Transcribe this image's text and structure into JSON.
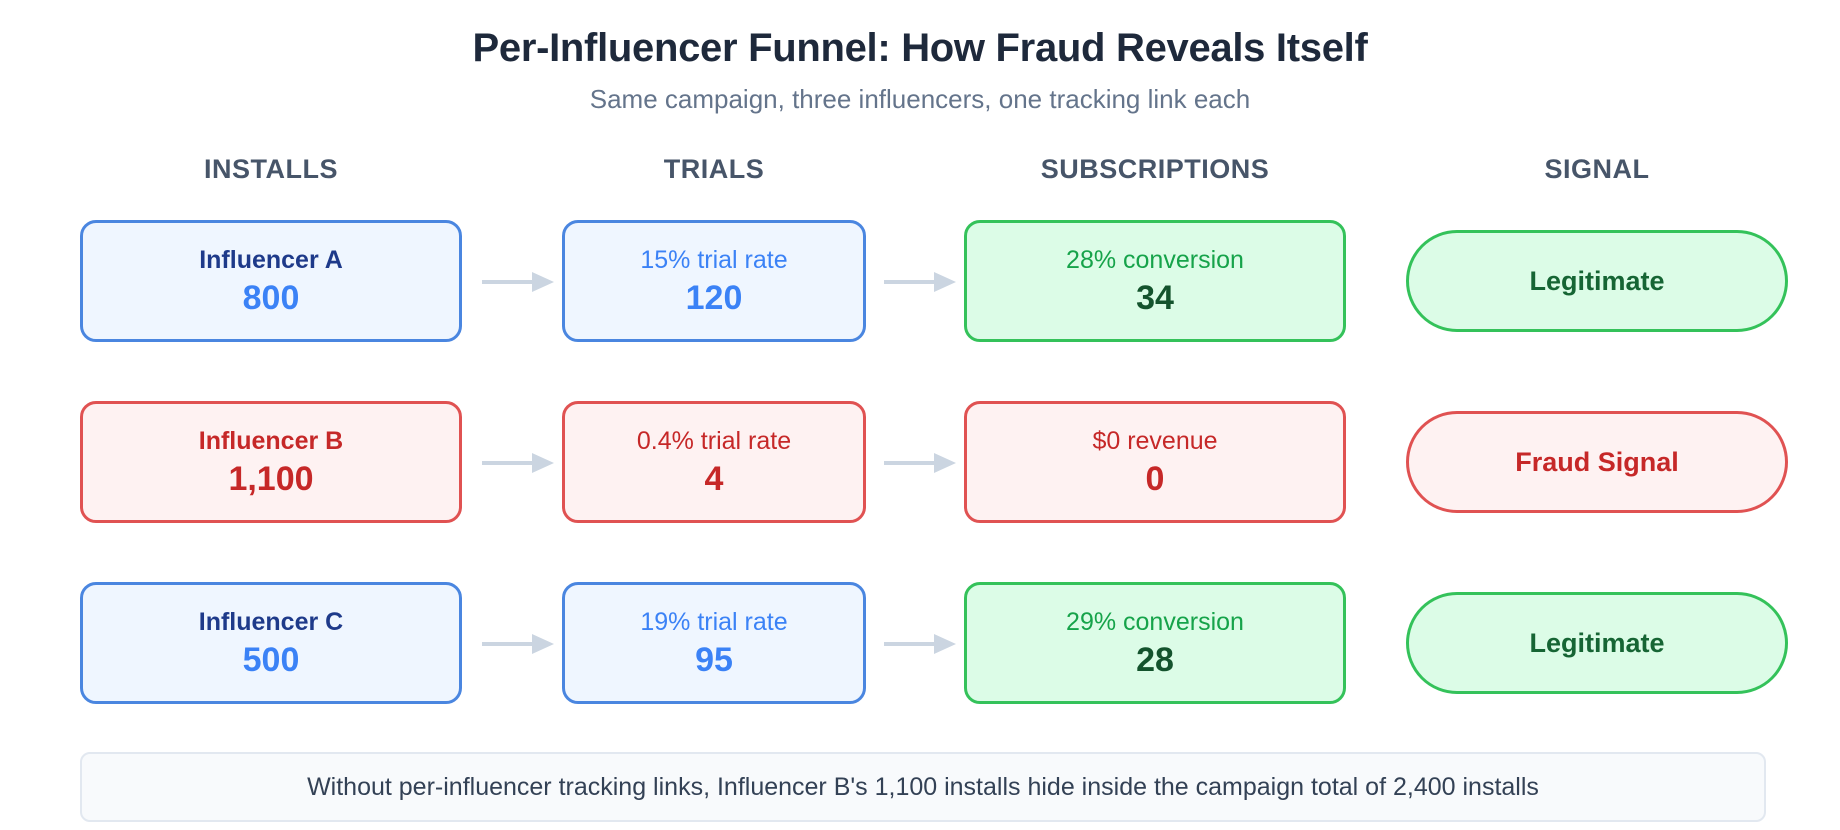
{
  "title": "Per-Influencer Funnel: How Fraud Reveals Itself",
  "subtitle": "Same campaign, three influencers, one tracking link each",
  "columns": [
    "INSTALLS",
    "TRIALS",
    "SUBSCRIPTIONS",
    "SIGNAL"
  ],
  "rows": [
    {
      "status": "legit",
      "installs": {
        "label": "Influencer A",
        "value": "800"
      },
      "trials": {
        "label": "15% trial rate",
        "value": "120"
      },
      "subscriptions": {
        "label": "28% conversion",
        "value": "34"
      },
      "signal": "Legitimate"
    },
    {
      "status": "fraud",
      "installs": {
        "label": "Influencer B",
        "value": "1,100"
      },
      "trials": {
        "label": "0.4% trial rate",
        "value": "4"
      },
      "subscriptions": {
        "label": "$0 revenue",
        "value": "0"
      },
      "signal": "Fraud Signal"
    },
    {
      "status": "legit",
      "installs": {
        "label": "Influencer C",
        "value": "500"
      },
      "trials": {
        "label": "19% trial rate",
        "value": "95"
      },
      "subscriptions": {
        "label": "29% conversion",
        "value": "28"
      },
      "signal": "Legitimate"
    }
  ],
  "footer": "Without per-influencer tracking links, Influencer B's 1,100 installs hide inside the campaign total of 2,400 installs",
  "colors": {
    "legit_blue": "#4a86e0",
    "fraud_red": "#e05252",
    "legit_green": "#34c25a",
    "arrow_gray": "#cbd5e1"
  }
}
